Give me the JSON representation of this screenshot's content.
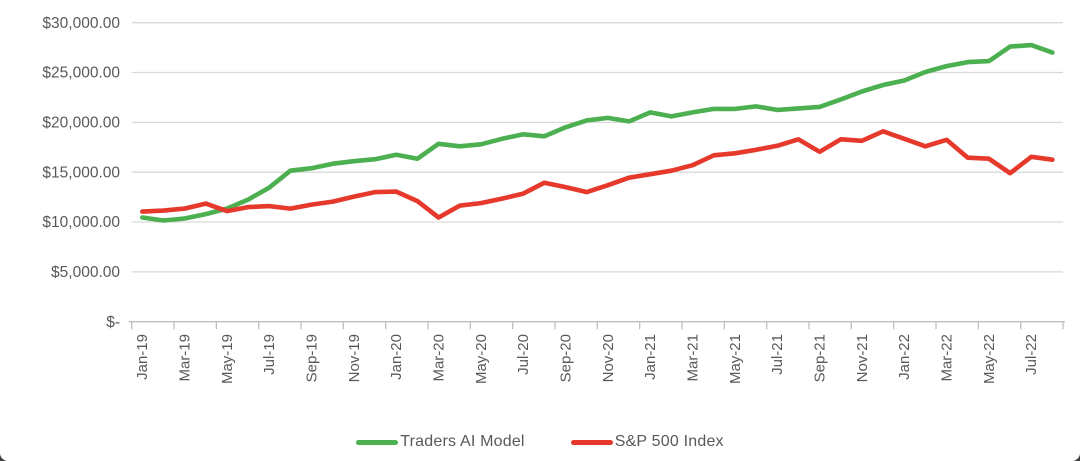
{
  "colors": {
    "background": "#FFFFFF",
    "text": "#595959",
    "gridline": "#D9D9D9",
    "axis_line": "#BFBFBF",
    "series_green": "#4CAF50",
    "series_red": "#E6392C",
    "corner_artifact": "#3D3D3D"
  },
  "chart_data": {
    "type": "line",
    "title": "",
    "xlabel": "",
    "ylabel": "",
    "ylim": [
      0,
      30000
    ],
    "y_tick_step": 5000,
    "y_tick_labels": [
      "$-",
      "$5,000.00",
      "$10,000.00",
      "$15,000.00",
      "$20,000.00",
      "$25,000.00",
      "$30,000.00"
    ],
    "x_label_interval": 2,
    "grid": "horizontal-only",
    "legend_position": "bottom-center",
    "categories": [
      "Jan-19",
      "Feb-19",
      "Mar-19",
      "Apr-19",
      "May-19",
      "Jun-19",
      "Jul-19",
      "Aug-19",
      "Sep-19",
      "Oct-19",
      "Nov-19",
      "Dec-19",
      "Jan-20",
      "Feb-20",
      "Mar-20",
      "Apr-20",
      "May-20",
      "Jun-20",
      "Jul-20",
      "Aug-20",
      "Sep-20",
      "Oct-20",
      "Nov-20",
      "Dec-20",
      "Jan-21",
      "Feb-21",
      "Mar-21",
      "Apr-21",
      "May-21",
      "Jun-21",
      "Jul-21",
      "Aug-21",
      "Sep-21",
      "Oct-21",
      "Nov-21",
      "Dec-21",
      "Jan-22",
      "Feb-22",
      "Mar-22",
      "Apr-22",
      "May-22",
      "Jun-22",
      "Jul-22",
      "Aug-22"
    ],
    "series": [
      {
        "name": "Traders AI Model",
        "color": "#4CAF50",
        "values": [
          10450,
          10150,
          10350,
          10800,
          11350,
          12250,
          13450,
          15150,
          15400,
          15850,
          16100,
          16300,
          16750,
          16350,
          17850,
          17600,
          17800,
          18350,
          18800,
          18600,
          19500,
          20200,
          20450,
          20100,
          21000,
          20600,
          21000,
          21350,
          21350,
          21600,
          21250,
          21400,
          21550,
          22300,
          23100,
          23750,
          24200,
          25050,
          25650,
          26050,
          26150,
          27600,
          27750,
          27000
        ]
      },
      {
        "name": "S&P 500 Index",
        "color": "#E6392C",
        "values": [
          11050,
          11150,
          11350,
          11850,
          11100,
          11500,
          11600,
          11350,
          11750,
          12050,
          12550,
          13000,
          13050,
          12100,
          10450,
          11650,
          11900,
          12350,
          12850,
          13950,
          13500,
          13000,
          13700,
          14450,
          14800,
          15150,
          15700,
          16700,
          16900,
          17250,
          17650,
          18300,
          17050,
          18300,
          18150,
          19100,
          18350,
          17600,
          18250,
          16450,
          16350,
          14900,
          16550,
          16250
        ]
      }
    ]
  }
}
